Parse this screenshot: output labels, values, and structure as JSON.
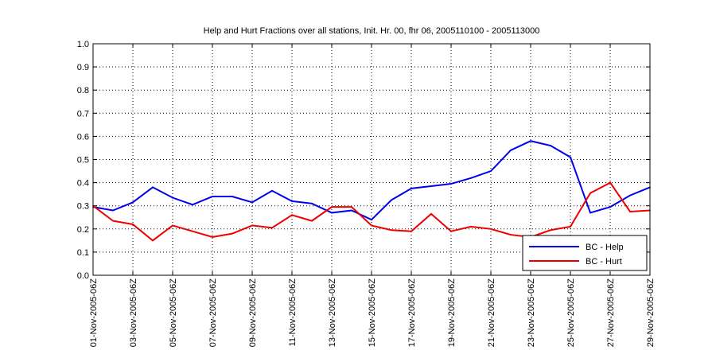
{
  "chart_data": {
    "type": "line",
    "title": "Help and Hurt Fractions over all stations, Init. Hr. 00, fhr 06, 2005110100 - 2005113000",
    "xlabel": "",
    "ylabel": "",
    "ylim": [
      0,
      1
    ],
    "yticks": [
      "0.0",
      "0.1",
      "0.2",
      "0.3",
      "0.4",
      "0.5",
      "0.6",
      "0.7",
      "0.8",
      "0.9",
      "1.0"
    ],
    "xtick_labels": [
      "01-Nov-2005-06Z",
      "03-Nov-2005-06Z",
      "05-Nov-2005-06Z",
      "07-Nov-2005-06Z",
      "09-Nov-2005-06Z",
      "11-Nov-2005-06Z",
      "13-Nov-2005-06Z",
      "15-Nov-2005-06Z",
      "17-Nov-2005-06Z",
      "19-Nov-2005-06Z",
      "21-Nov-2005-06Z",
      "23-Nov-2005-06Z",
      "25-Nov-2005-06Z",
      "27-Nov-2005-06Z",
      "29-Nov-2005-06Z"
    ],
    "x_days": [
      1,
      2,
      3,
      4,
      5,
      6,
      7,
      8,
      9,
      10,
      11,
      12,
      13,
      14,
      15,
      16,
      17,
      18,
      19,
      20,
      21,
      22,
      23,
      24,
      25,
      26,
      27,
      28,
      29
    ],
    "grid": true,
    "legend_position": "bottom-right",
    "series": [
      {
        "name": "BC - Help",
        "color": "#0000ee",
        "values": [
          0.295,
          0.28,
          0.315,
          0.38,
          0.335,
          0.305,
          0.34,
          0.34,
          0.315,
          0.365,
          0.32,
          0.31,
          0.27,
          0.28,
          0.24,
          0.325,
          0.375,
          0.385,
          0.395,
          0.42,
          0.45,
          0.54,
          0.58,
          0.56,
          0.51,
          0.27,
          0.295,
          0.345,
          0.38
        ]
      },
      {
        "name": "BC - Hurt",
        "color": "#ee0000",
        "values": [
          0.3,
          0.235,
          0.22,
          0.15,
          0.215,
          0.19,
          0.165,
          0.18,
          0.215,
          0.205,
          0.26,
          0.235,
          0.295,
          0.295,
          0.215,
          0.195,
          0.19,
          0.265,
          0.19,
          0.21,
          0.2,
          0.175,
          0.165,
          0.195,
          0.21,
          0.355,
          0.4,
          0.275,
          0.28
        ]
      }
    ]
  }
}
